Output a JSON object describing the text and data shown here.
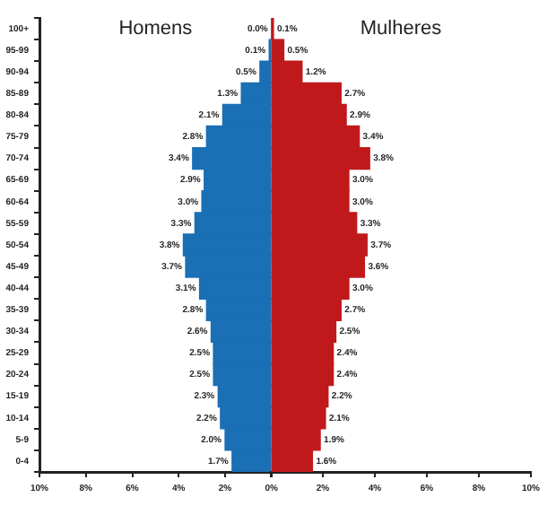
{
  "chart_data": [
    {
      "type": "bar",
      "orientation": "horizontal",
      "legend": false,
      "grid": false,
      "categories": [
        "100+",
        "95-99",
        "90-94",
        "85-89",
        "80-84",
        "75-79",
        "70-74",
        "65-69",
        "60-64",
        "55-59",
        "50-54",
        "45-49",
        "40-44",
        "35-39",
        "30-34",
        "25-29",
        "20-24",
        "15-19",
        "10-14",
        "5-9",
        "0-4"
      ],
      "series": [
        {
          "name": "Homens",
          "color": "#1a6fb5",
          "values": [
            0.0,
            0.1,
            0.5,
            1.3,
            2.1,
            2.8,
            3.4,
            2.9,
            3.0,
            3.3,
            3.8,
            3.7,
            3.1,
            2.8,
            2.6,
            2.5,
            2.5,
            2.3,
            2.2,
            2.0,
            1.7
          ],
          "value_labels": [
            "0.0%",
            "0.1%",
            "0.5%",
            "1.3%",
            "2.1%",
            "2.8%",
            "3.4%",
            "2.9%",
            "3.0%",
            "3.3%",
            "3.8%",
            "3.7%",
            "3.1%",
            "2.8%",
            "2.6%",
            "2.5%",
            "2.5%",
            "2.3%",
            "2.2%",
            "2.0%",
            "1.7%"
          ]
        }
      ],
      "xlim": [
        10,
        0
      ],
      "xticks": [
        {
          "value": 10,
          "label": "10%"
        },
        {
          "value": 8,
          "label": "8%"
        },
        {
          "value": 6,
          "label": "6%"
        },
        {
          "value": 4,
          "label": "4%"
        },
        {
          "value": 2,
          "label": "2%"
        },
        {
          "value": 0,
          "label": "0%"
        }
      ]
    },
    {
      "type": "bar",
      "orientation": "horizontal",
      "legend": false,
      "grid": false,
      "tick_labels": "x",
      "categories": [
        null,
        null,
        null,
        null,
        null,
        null,
        null,
        null,
        null,
        null,
        null,
        null,
        null,
        null,
        null,
        null,
        null,
        null,
        null,
        null,
        null
      ],
      "series": [
        {
          "name": "Mulheres",
          "color": "#c0191c",
          "values": [
            0.1,
            0.5,
            1.2,
            2.7,
            2.9,
            3.4,
            3.8,
            3.0,
            3.0,
            3.3,
            3.7,
            3.6,
            3.0,
            2.7,
            2.5,
            2.4,
            2.4,
            2.2,
            2.1,
            1.9,
            1.6
          ],
          "value_labels": [
            "0.1%",
            "0.5%",
            "1.2%",
            "2.7%",
            "2.9%",
            "3.4%",
            "3.8%",
            "3.0%",
            "3.0%",
            "3.3%",
            "3.7%",
            "3.6%",
            "3.0%",
            "2.7%",
            "2.5%",
            "2.4%",
            "2.4%",
            "2.2%",
            "2.1%",
            "1.9%",
            "1.6%"
          ]
        }
      ],
      "xlim": [
        0,
        10
      ],
      "xticks": [
        {
          "value": 0,
          "label": null
        },
        {
          "value": 2,
          "label": "2%"
        },
        {
          "value": 4,
          "label": "4%"
        },
        {
          "value": 6,
          "label": "6%"
        },
        {
          "value": 8,
          "label": "8%"
        },
        {
          "value": 10,
          "label": "10%"
        }
      ]
    }
  ]
}
